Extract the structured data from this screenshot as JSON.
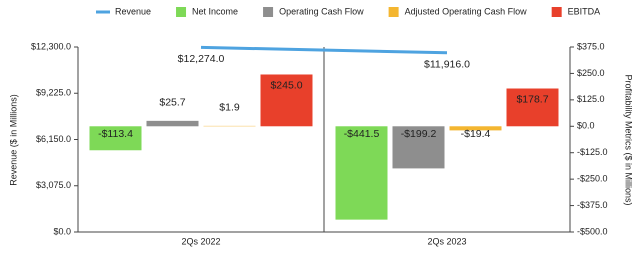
{
  "chart_data": {
    "type": "bar",
    "categories": [
      "2Qs 2022",
      "2Qs 2023"
    ],
    "ylabel": "Revenue ($ in Millions)",
    "y2label": "Profitability Metrics ($ in Millions)",
    "ylim": [
      0,
      12300
    ],
    "yticks": [
      {
        "value": 0,
        "label": "$0.0"
      },
      {
        "value": 3075,
        "label": "$3,075.0"
      },
      {
        "value": 6150,
        "label": "$6,150.0"
      },
      {
        "value": 9225,
        "label": "$9,225.0"
      },
      {
        "value": 12300,
        "label": "$12,300.0"
      }
    ],
    "y2lim": [
      -500,
      375
    ],
    "y2ticks": [
      {
        "value": -500,
        "label": "-$500.0"
      },
      {
        "value": -375,
        "label": "-$375.0"
      },
      {
        "value": -250,
        "label": "-$250.0"
      },
      {
        "value": -125,
        "label": "-$125.0"
      },
      {
        "value": 0,
        "label": "$0.0"
      },
      {
        "value": 125,
        "label": "$125.0"
      },
      {
        "value": 250,
        "label": "$250.0"
      },
      {
        "value": 375,
        "label": "$375.0"
      }
    ],
    "legend": "top",
    "series": [
      {
        "name": "Revenue",
        "type": "line",
        "color": "#4ea3e0",
        "values": [
          12274.0,
          11916.0
        ],
        "value_labels": [
          "$12,274.0",
          "$11,916.0"
        ]
      },
      {
        "name": "Net Income",
        "color": "#7ed957",
        "axis": "y2",
        "values": [
          -113.4,
          -441.5
        ],
        "value_labels": [
          "-$113.4",
          "-$441.5"
        ]
      },
      {
        "name": "Operating Cash Flow",
        "color": "#8e8e8e",
        "axis": "y2",
        "values": [
          25.7,
          -199.2
        ],
        "value_labels": [
          "$25.7",
          "-$199.2"
        ]
      },
      {
        "name": "Adjusted Operating Cash Flow",
        "color": "#f4b630",
        "axis": "y2",
        "values": [
          1.9,
          -19.4
        ],
        "value_labels": [
          "$1.9",
          "-$19.4"
        ]
      },
      {
        "name": "EBITDA",
        "color": "#e8402b",
        "axis": "y2",
        "values": [
          245.0,
          178.7
        ],
        "value_labels": [
          "$245.0",
          "$178.7"
        ]
      }
    ]
  }
}
